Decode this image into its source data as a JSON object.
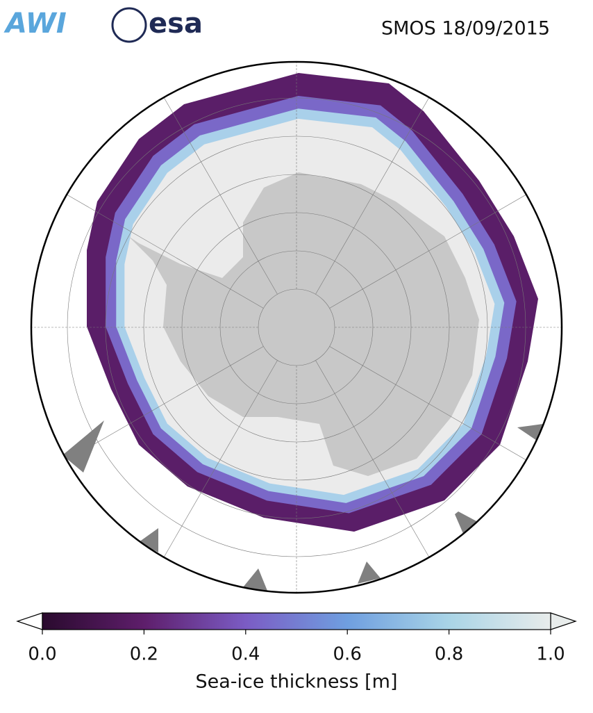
{
  "header": {
    "logos": [
      "AWI",
      "esa"
    ],
    "title": "SMOS 18/09/2015"
  },
  "colorbar": {
    "label": "Sea-ice thickness [m]",
    "lim": [
      0,
      1
    ],
    "ticks": [
      {
        "value": 0,
        "label": "0.0"
      },
      0.2,
      0.4,
      0.6,
      0.8,
      {
        "value": 1,
        "label": "1.0"
      }
    ],
    "colors": [
      "#2a0a2e",
      "#5e1e6b",
      "#7b5cc4",
      "#6f9fe0",
      "#a9d4e6",
      "#e8eceb"
    ]
  }
}
